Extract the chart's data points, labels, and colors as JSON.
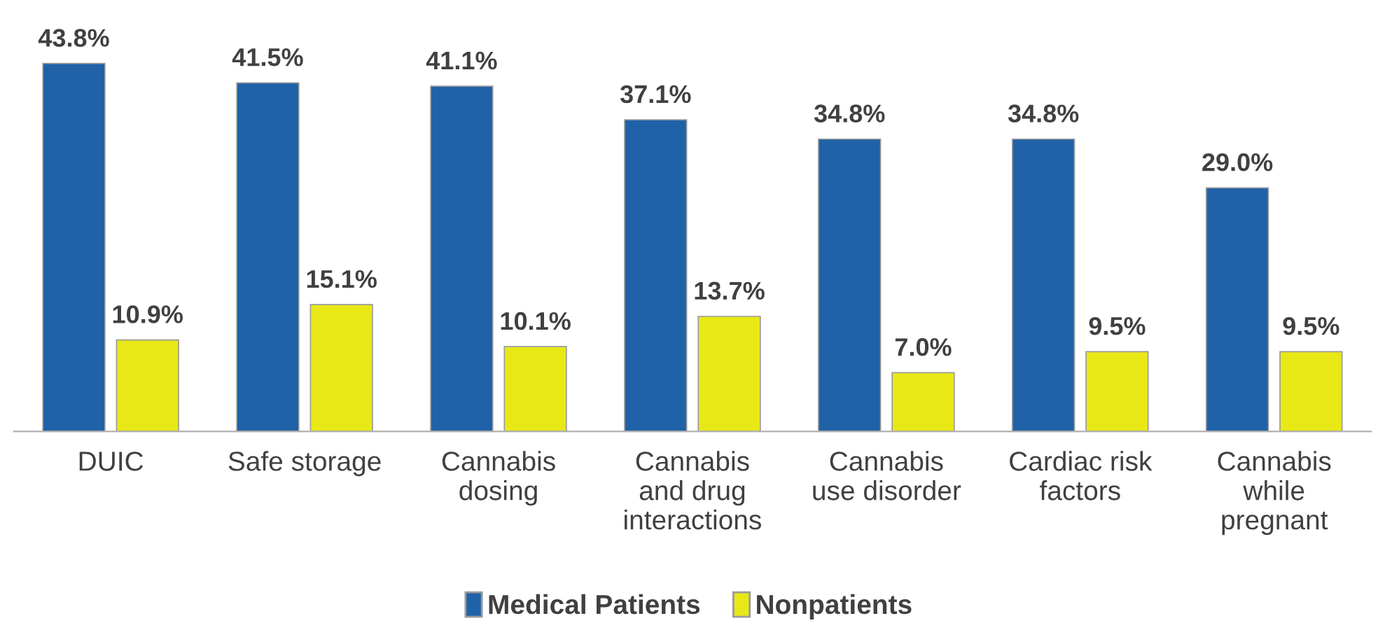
{
  "chart_data": {
    "type": "bar",
    "categories": [
      "DUIC",
      "Safe storage",
      "Cannabis\ndosing",
      "Cannabis\nand drug\ninteractions",
      "Cannabis\nuse disorder",
      "Cardiac risk\nfactors",
      "Cannabis\nwhile\npregnant"
    ],
    "series": [
      {
        "name": "Medical Patients",
        "color": "#1f62a8",
        "values": [
          43.8,
          41.5,
          41.1,
          37.1,
          34.8,
          34.8,
          29.0
        ],
        "value_labels": [
          "43.8%",
          "41.5%",
          "41.1%",
          "37.1%",
          "34.8%",
          "34.8%",
          "29.0%"
        ]
      },
      {
        "name": "Nonpatients",
        "color": "#e8e817",
        "values": [
          10.9,
          15.1,
          10.1,
          13.7,
          7.0,
          9.5,
          9.5
        ],
        "value_labels": [
          "10.9%",
          "15.1%",
          "10.1%",
          "13.7%",
          "7.0%",
          "9.5%",
          "9.5%"
        ]
      }
    ],
    "legend": "bottom",
    "grid": false,
    "tick_labels": "x"
  }
}
